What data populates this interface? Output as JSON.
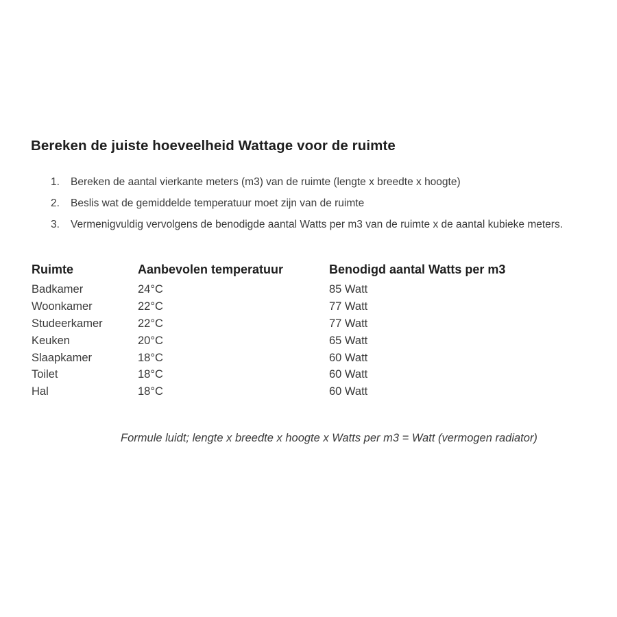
{
  "document": {
    "title": "Bereken de juiste hoeveelheid Wattage voor de ruimte",
    "steps": [
      {
        "num": "1.",
        "text": "Bereken de aantal vierkante meters (m3) van de ruimte (lengte x breedte x hoogte)"
      },
      {
        "num": "2.",
        "text": "Beslis wat de gemiddelde temperatuur moet zijn van de ruimte"
      },
      {
        "num": "3.",
        "text": "Vermenigvuldig vervolgens de benodigde aantal Watts per m3 van de ruimte x de aantal kubieke meters."
      }
    ],
    "table": {
      "headers": [
        "Ruimte",
        "Aanbevolen temperatuur",
        "Benodigd aantal Watts per m3"
      ],
      "rows": [
        {
          "room": "Badkamer",
          "temperature": "24°C",
          "watts": "85 Watt"
        },
        {
          "room": "Woonkamer",
          "temperature": "22°C",
          "watts": "77 Watt"
        },
        {
          "room": "Studeerkamer",
          "temperature": "22°C",
          "watts": "77 Watt"
        },
        {
          "room": "Keuken",
          "temperature": "20°C",
          "watts": "65 Watt"
        },
        {
          "room": "Slaapkamer",
          "temperature": "18°C",
          "watts": "60 Watt"
        },
        {
          "room": "Toilet",
          "temperature": "18°C",
          "watts": "60 Watt"
        },
        {
          "room": "Hal",
          "temperature": "18°C",
          "watts": "60 Watt"
        }
      ]
    },
    "formula": "Formule luidt; lengte x breedte x hoogte x Watts per m3 = Watt (vermogen radiator)",
    "colors": {
      "background": "#ffffff",
      "heading_text": "#1e1e1e",
      "body_text": "#3a3a3a"
    }
  }
}
